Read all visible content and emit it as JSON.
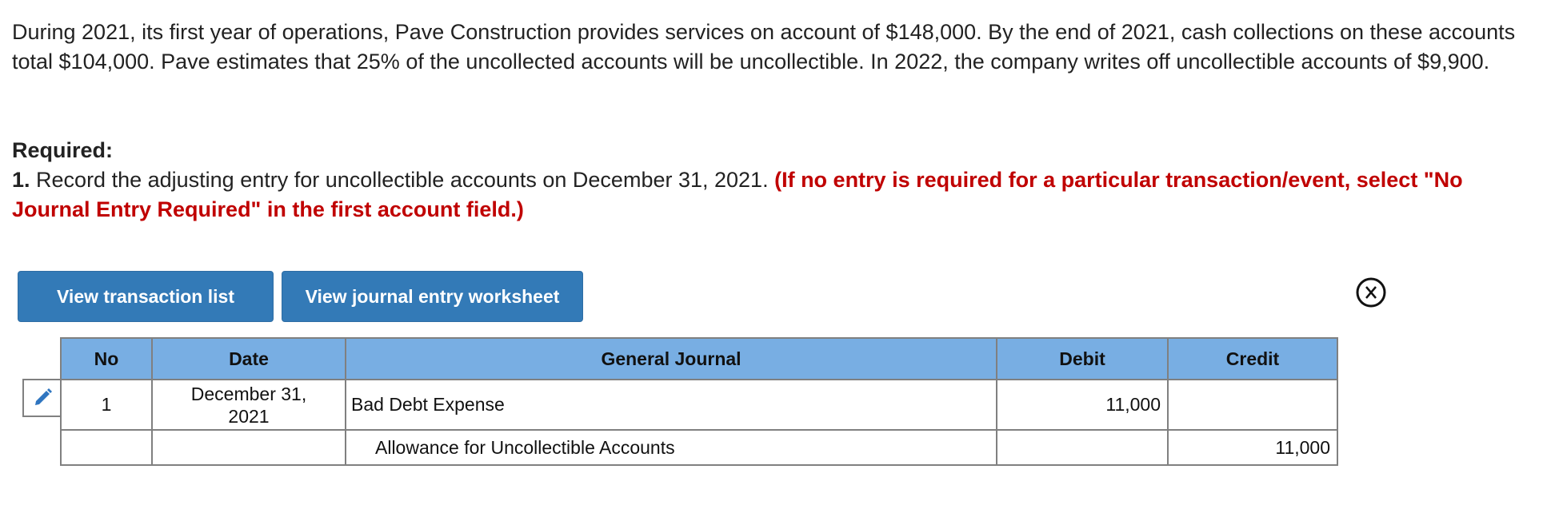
{
  "question": {
    "text": "During 2021, its first year of operations, Pave Construction provides services on account of $148,000. By the end of 2021, cash collections on these accounts total $104,000. Pave estimates that 25% of the uncollected accounts will be uncollectible. In 2022, the company writes off uncollectible accounts of $9,900."
  },
  "required": {
    "heading": "Required:",
    "number": "1.",
    "text": " Record the adjusting entry for uncollectible accounts on December 31, 2021. ",
    "instruction": "(If no entry is required for a particular transaction/event, select \"No Journal Entry Required\" in the first account field.)"
  },
  "buttons": {
    "transaction_list": "View transaction list",
    "worksheet": "View journal entry worksheet"
  },
  "icons": {
    "close": "close-circle-icon",
    "edit": "pencil-icon"
  },
  "colors": {
    "button": "#337ab7",
    "header": "#78aee3",
    "instruction": "#c00000"
  },
  "table": {
    "headers": [
      "No",
      "Date",
      "General Journal",
      "Debit",
      "Credit"
    ],
    "rows": [
      {
        "no": "1",
        "date": "December 31, 2021",
        "account": "Bad Debt Expense",
        "debit": "11,000",
        "credit": ""
      },
      {
        "no": "",
        "date": "",
        "account": "Allowance for Uncollectible Accounts",
        "debit": "",
        "credit": "11,000"
      }
    ]
  }
}
